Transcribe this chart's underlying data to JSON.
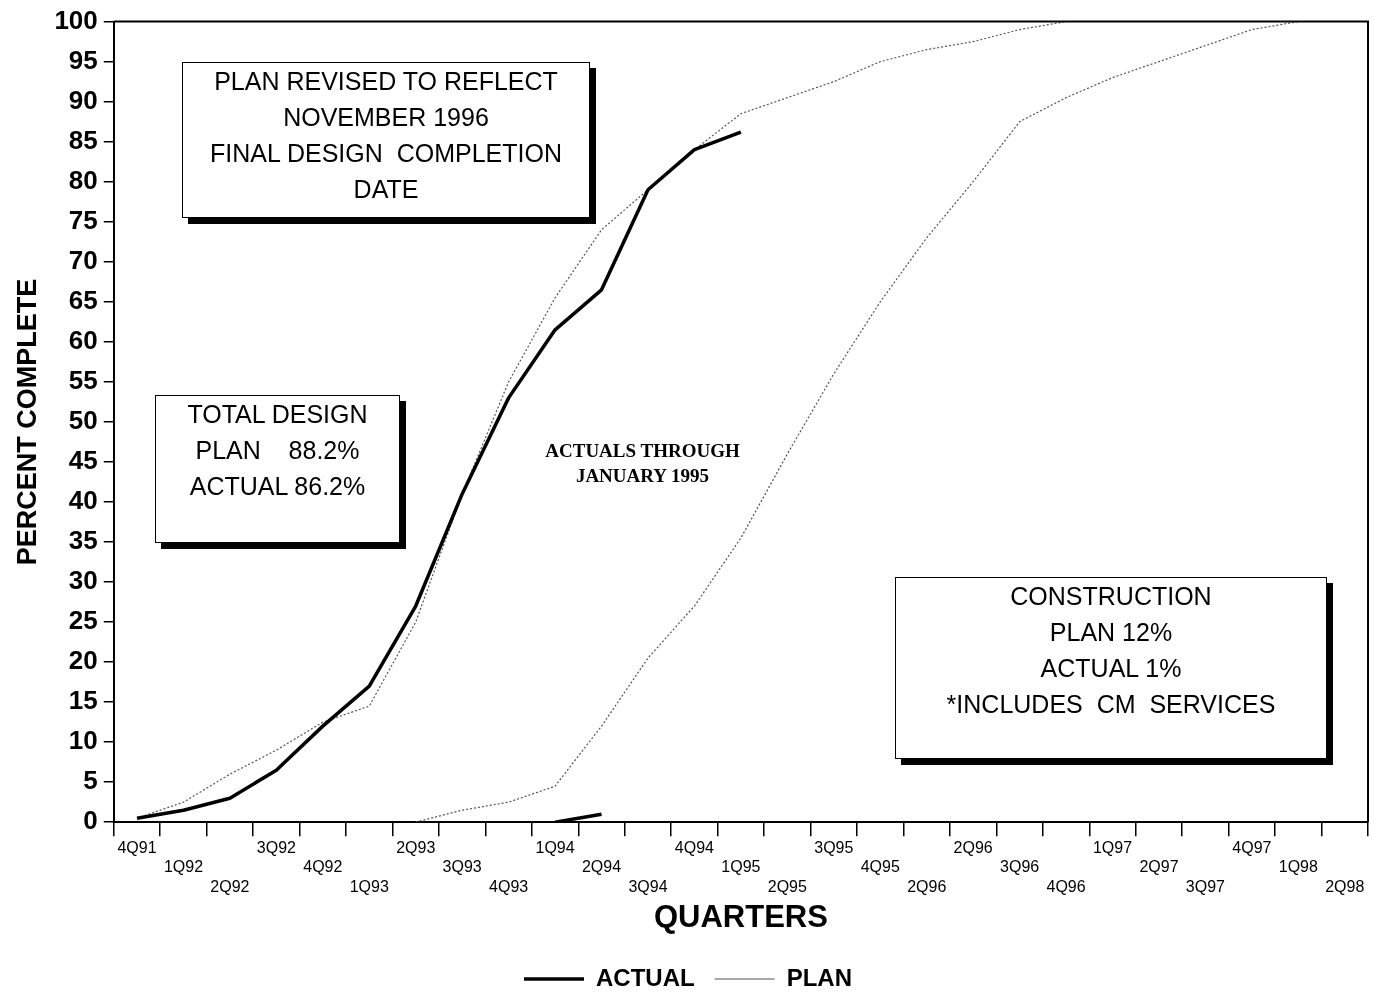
{
  "chart_data": {
    "type": "line",
    "xlabel": "QUARTERS",
    "ylabel": "PERCENT COMPLETE",
    "categories": [
      "4Q91",
      "1Q92",
      "2Q92",
      "3Q92",
      "4Q92",
      "1Q93",
      "2Q93",
      "3Q93",
      "4Q93",
      "1Q94",
      "2Q94",
      "3Q94",
      "4Q94",
      "1Q95",
      "2Q95",
      "3Q95",
      "4Q95",
      "2Q96",
      "2Q96",
      "3Q96",
      "4Q96",
      "1Q97",
      "2Q97",
      "3Q97",
      "4Q97",
      "1Q98",
      "2Q98"
    ],
    "series": [
      {
        "name": "ACTUAL",
        "color": "#000000",
        "line_style": "solid",
        "values": [
          0.5,
          1.5,
          3,
          6.5,
          12,
          17,
          27,
          41,
          53,
          61.5,
          66.5,
          79,
          84,
          86.2,
          null,
          null,
          null,
          null,
          null,
          null,
          null,
          null,
          null,
          null,
          null,
          null,
          null
        ]
      },
      {
        "name": "PLAN",
        "color": "#555555",
        "line_style": "dotted",
        "values": [
          0.5,
          2.5,
          6,
          9,
          12.5,
          14.5,
          25,
          41,
          55,
          65.5,
          74,
          79,
          84,
          88.5,
          90.5,
          92.5,
          95,
          96.5,
          97.5,
          99,
          100,
          null,
          null,
          null,
          null,
          null,
          null
        ]
      },
      {
        "color": "#555555",
        "line_style": "dotted",
        "values": [
          null,
          null,
          null,
          null,
          null,
          null,
          0,
          1.5,
          2.5,
          4.5,
          12,
          20.5,
          27,
          35.5,
          46,
          56,
          65,
          73,
          80,
          87.5,
          90.5,
          93,
          95,
          97,
          99,
          100,
          null
        ]
      },
      {
        "color": "#000000",
        "line_style": "solid",
        "values": [
          null,
          null,
          null,
          null,
          null,
          null,
          null,
          null,
          null,
          0,
          1,
          null,
          null,
          null,
          null,
          null,
          null,
          null,
          null,
          null,
          null,
          null,
          null,
          null,
          null,
          null,
          null
        ]
      }
    ],
    "ylim": [
      0,
      100
    ],
    "yticks": [
      0,
      5,
      10,
      15,
      20,
      25,
      30,
      35,
      40,
      45,
      50,
      55,
      60,
      65,
      70,
      75,
      80,
      85,
      90,
      95,
      100
    ],
    "grid": false,
    "legend": "bottom",
    "marker": "none",
    "annotations": [
      "PLAN REVISED TO REFLECT\nNOVEMBER 1996\nFINAL DESIGN  COMPLETION\nDATE",
      "TOTAL DESIGN\nPLAN    88.2%\nACTUAL 86.2%",
      "ACTUALS THROUGH\nJANUARY 1995",
      "CONSTRUCTION\nPLAN 12%\nACTUAL 1%\n*INCLUDES  CM  SERVICES"
    ]
  }
}
